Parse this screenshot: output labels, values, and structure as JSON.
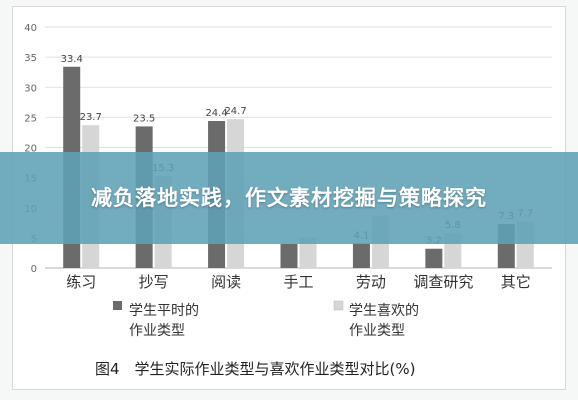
{
  "banner": {
    "title": "减负落地实践，作文素材挖掘与策略探究"
  },
  "chart_data": {
    "type": "bar",
    "categories": [
      "练习",
      "抄写",
      "阅读",
      "手工",
      "劳动",
      "调查研究",
      "其它"
    ],
    "series": [
      {
        "name": "学生平时的作业类型",
        "values": [
          33.4,
          23.5,
          24.4,
          4.0,
          4.1,
          3.2,
          7.3
        ],
        "color": "#6b6b6b"
      },
      {
        "name": "学生喜欢的作业类型",
        "values": [
          23.7,
          15.3,
          24.7,
          5.0,
          8.7,
          5.8,
          7.7
        ],
        "color": "#d6d6d6"
      }
    ],
    "value_labels": [
      [
        "33.4",
        "23.5",
        "24.4",
        "",
        "4.1",
        "3.2",
        "7.3"
      ],
      [
        "23.7",
        "15.3",
        "24.7",
        "",
        "",
        "5.8",
        "7.7"
      ]
    ],
    "yticks": [
      "0",
      "5",
      "10",
      "15",
      "20",
      "25",
      "30",
      "35",
      "40"
    ],
    "ylim": [
      0,
      40
    ],
    "grid": true,
    "legend": {
      "position": "bottom",
      "items": [
        {
          "line1": "学生平时的",
          "line2": "作业类型"
        },
        {
          "line1": "学生喜欢的",
          "line2": "作业类型"
        }
      ]
    },
    "caption": "图4　学生实际作业类型与喜欢作业类型对比(%)"
  }
}
